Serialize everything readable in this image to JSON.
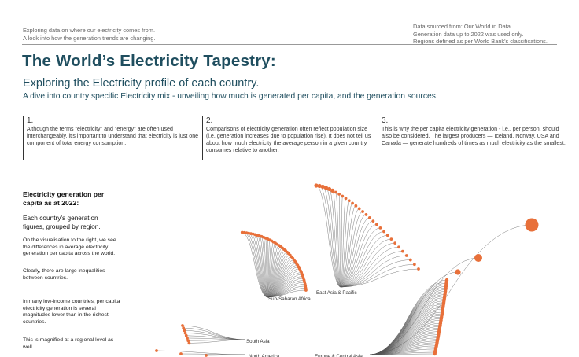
{
  "header": {
    "left_lines": [
      "Exploring data on where our electricity comes from.",
      "A look into how the generation trends are changing."
    ],
    "right_lines": [
      "Data sourced from: Our World in Data.",
      "Generation data up to 2022 was used only.",
      "Regions defined as per World Bank's classifications."
    ]
  },
  "title": "The World’s Electricity Tapestry:",
  "subtitle": "Exploring the Electricity profile of each country.",
  "description": "A dive into country specific Electricity mix - unveiling how much is generated per capita, and the generation sources.",
  "columns": [
    {
      "number": "1.",
      "text": "Although the terms \"electricity\" and \"energy\" are often used interchangeably, it's important to understand that electricity is just one component of total energy consumption."
    },
    {
      "number": "2.",
      "text": "Comparisons of electricity generation often reflect population size (i.e. generation increases due to population rise). It does not tell us about how much electricity the average person in a given country consumes relative to another."
    },
    {
      "number": "3.",
      "text": "This is why the per capita electricity generation - i.e., per person, should also be considered. The largest producers — Iceland, Norway, USA and Canada — generate hundreds of times as much electricity as the smallest."
    }
  ],
  "sidebar": {
    "heading": "Electricity generation per capita as at 2022:",
    "subheading": "Each country's generation figures, grouped by region.",
    "paragraphs": [
      "On the visualisation to the right, we see the differences in average electricity generation per capita across the world.",
      "Clearly, there are large inequalities between countries.",
      "In many low-income countries, per capita electricity generation is several magnitudes lower than in the richest countries.",
      "This is magnified at a regional level as well."
    ]
  },
  "chart_data": {
    "type": "radial-dendrogram",
    "title": "Electricity generation per capita as at 2022",
    "point_color": "#e8703a",
    "line_color": "#555555",
    "regions": [
      {
        "name": "Sub-Saharan Africa",
        "countries": 45
      },
      {
        "name": "East Asia & Pacific",
        "countries": 30
      },
      {
        "name": "South Asia",
        "countries": 8
      },
      {
        "name": "North America",
        "countries": 3
      },
      {
        "name": "Europe & Central Asia",
        "countries": 50
      }
    ]
  }
}
